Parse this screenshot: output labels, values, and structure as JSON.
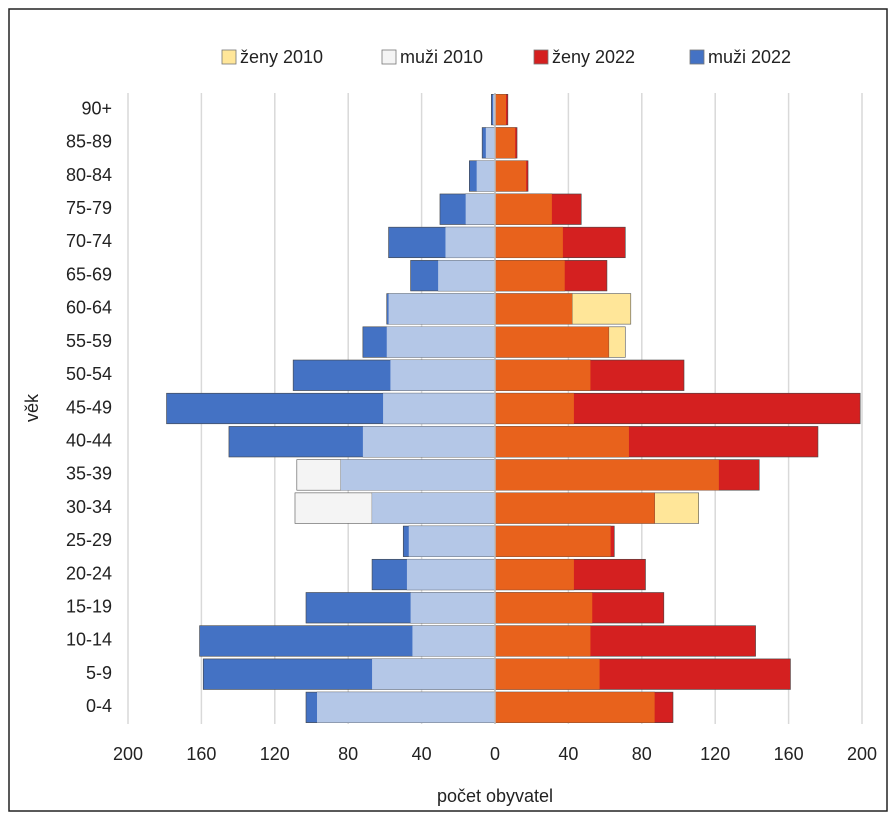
{
  "chart_data": {
    "type": "pyramid",
    "categories": [
      "0-4",
      "5-9",
      "10-14",
      "15-19",
      "20-24",
      "25-29",
      "30-34",
      "35-39",
      "40-44",
      "45-49",
      "50-54",
      "55-59",
      "60-64",
      "65-69",
      "70-74",
      "75-79",
      "80-84",
      "85-89",
      "90+"
    ],
    "series": [
      {
        "name": "ženy 2010",
        "color": "#ffe699",
        "overlap_color": "#e8621c",
        "side": "right",
        "values": [
          87,
          57,
          52,
          53,
          43,
          63,
          111,
          122,
          73,
          43,
          52,
          71,
          74,
          38,
          37,
          31,
          17,
          11,
          6
        ]
      },
      {
        "name": "muži 2010",
        "color": "#f4f4f4",
        "overlap_color": "#b4c7e7",
        "side": "left",
        "values": [
          97,
          67,
          45,
          46,
          48,
          47,
          109,
          108,
          72,
          61,
          57,
          59,
          58,
          31,
          27,
          16,
          10,
          5,
          1
        ]
      },
      {
        "name": "ženy 2022",
        "color": "#d42020",
        "side": "right",
        "values": [
          97,
          161,
          142,
          92,
          82,
          65,
          87,
          144,
          176,
          199,
          103,
          62,
          42,
          61,
          71,
          47,
          18,
          12,
          7
        ]
      },
      {
        "name": "muži 2022",
        "color": "#4472c4",
        "side": "left",
        "values": [
          103,
          159,
          161,
          103,
          67,
          50,
          67,
          84,
          145,
          179,
          110,
          72,
          59,
          46,
          58,
          30,
          14,
          7,
          2
        ]
      }
    ],
    "xlabel": "počet obyvatel",
    "ylabel": "věk",
    "xlim": [
      -200,
      200
    ],
    "xticks": [
      {
        "value": -200,
        "label": "200"
      },
      {
        "value": -160,
        "label": "160"
      },
      {
        "value": -120,
        "label": "120"
      },
      {
        "value": -80,
        "label": "80"
      },
      {
        "value": -40,
        "label": "40"
      },
      0,
      40,
      80,
      120,
      160,
      200
    ],
    "grid": true,
    "legend": "top"
  }
}
